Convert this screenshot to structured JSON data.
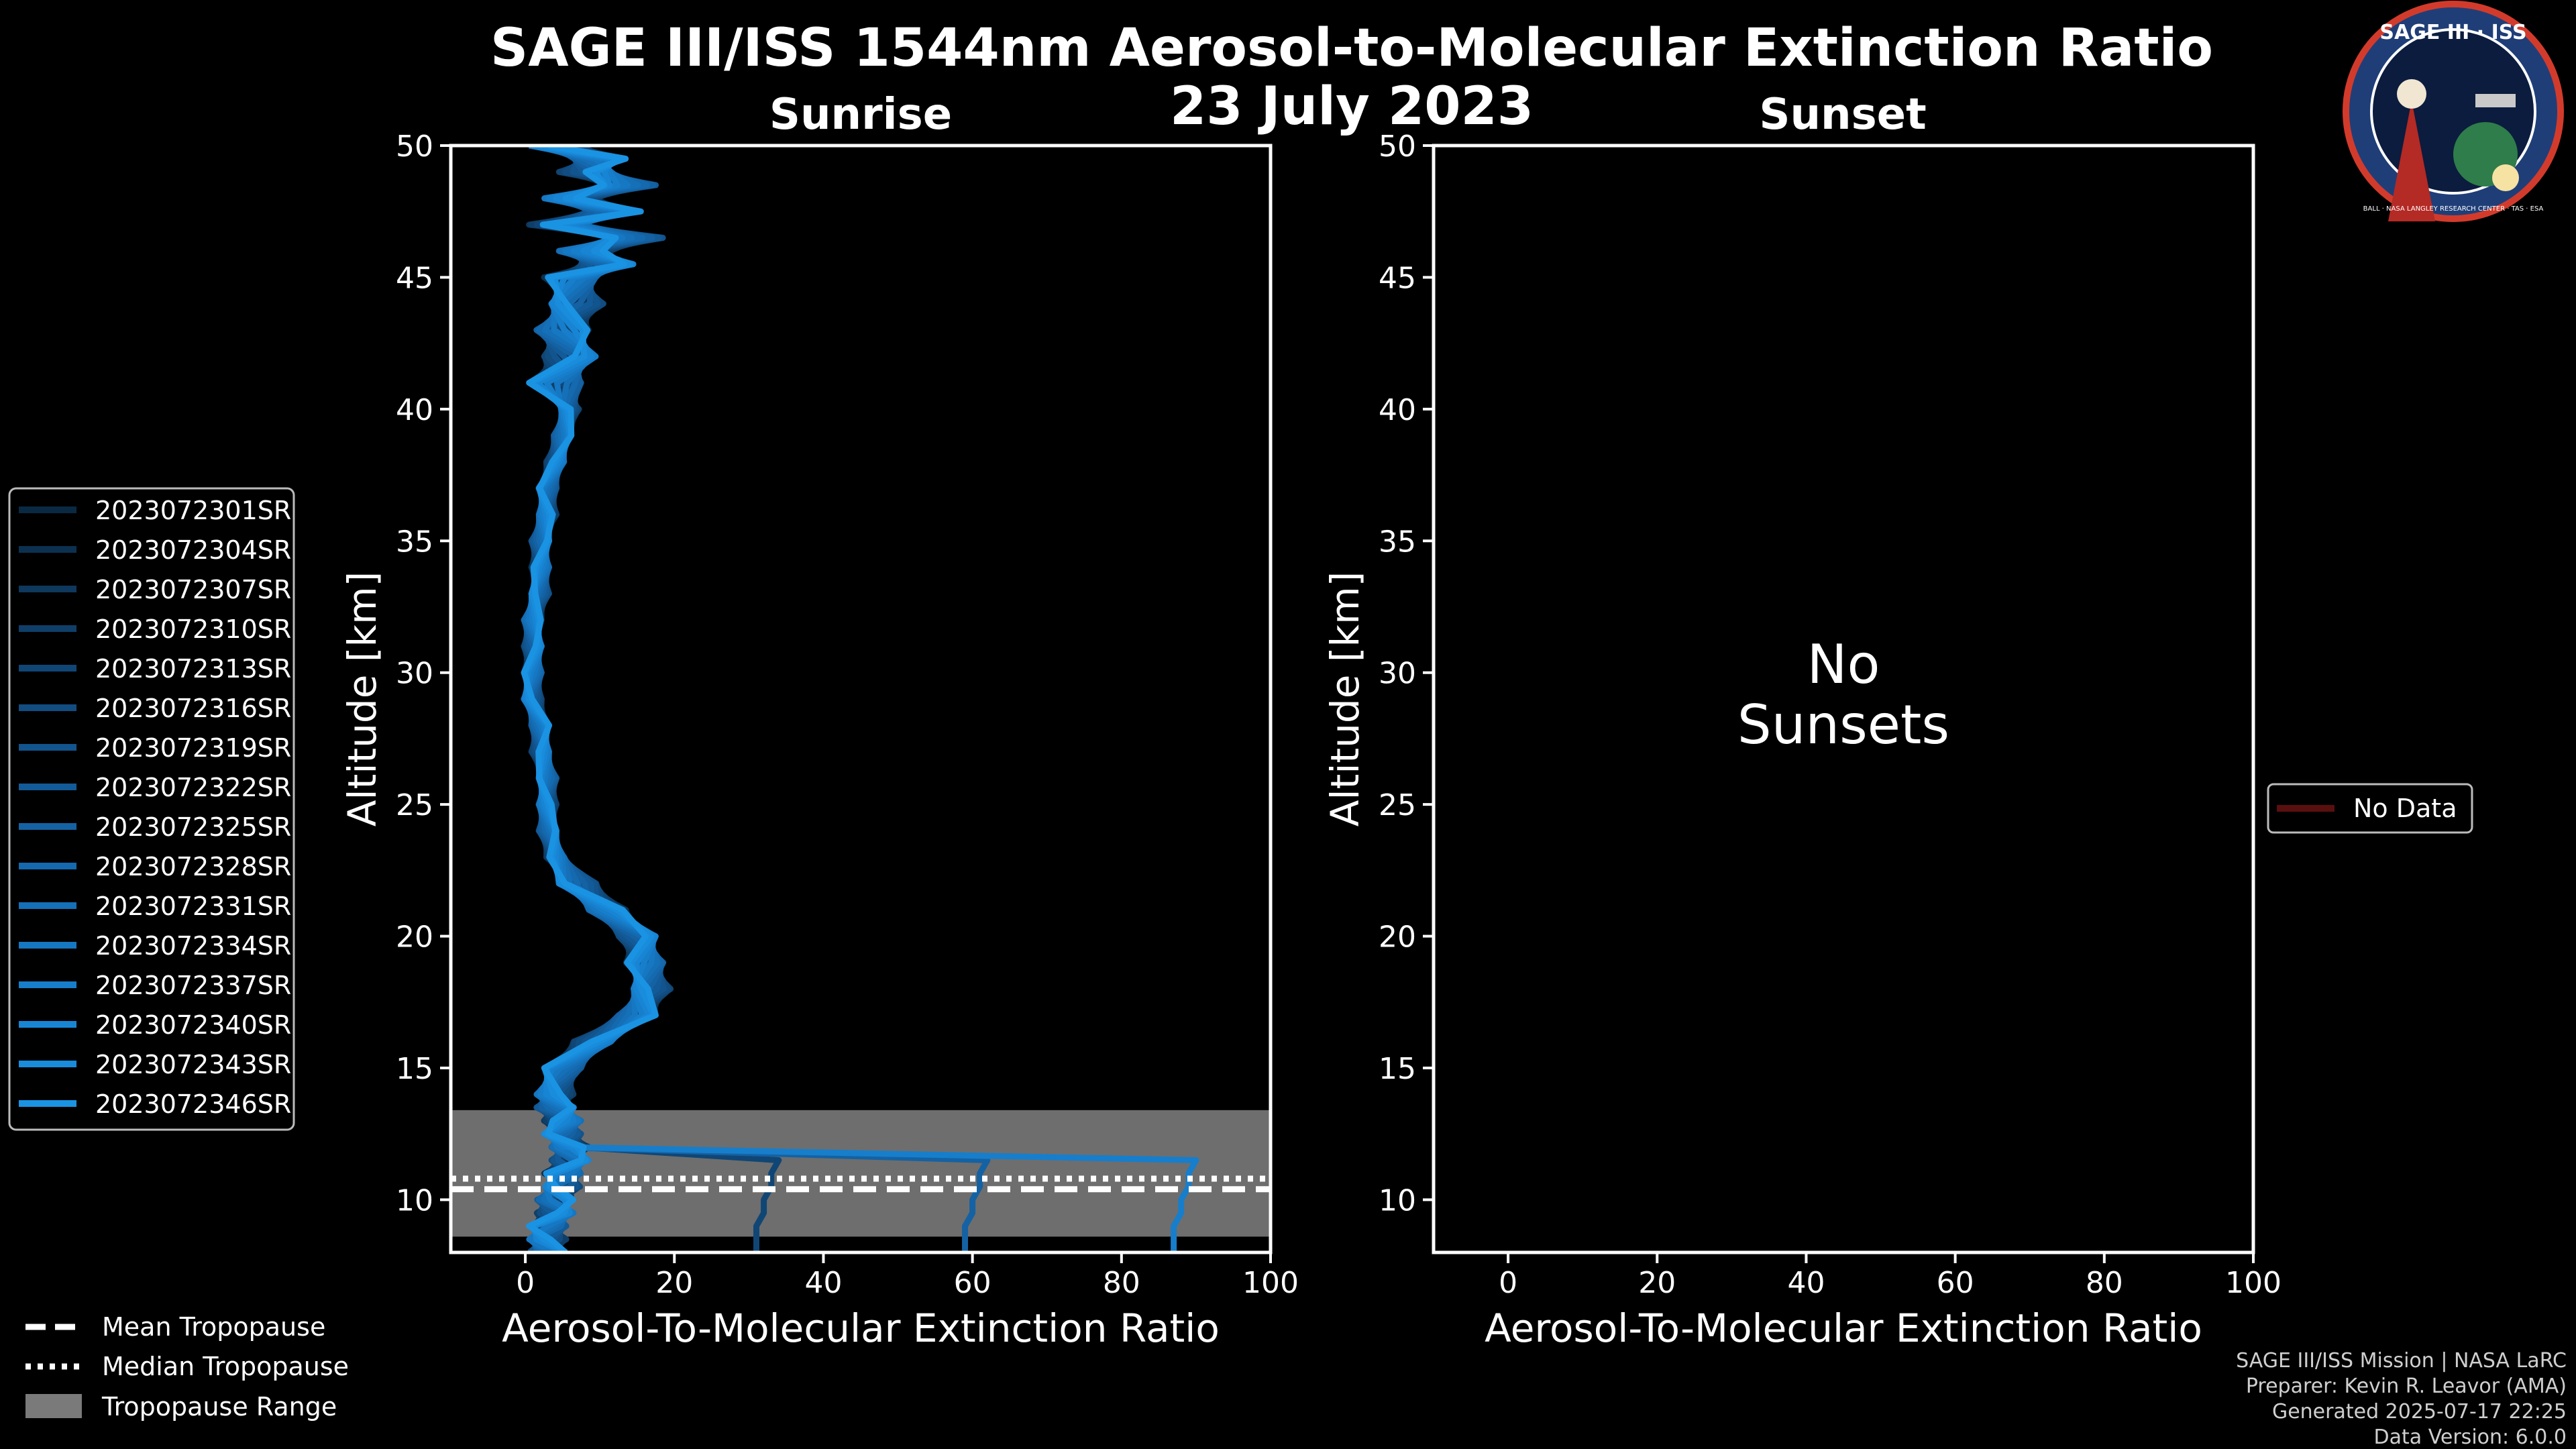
{
  "chart_data": [
    {
      "type": "line",
      "panel": "sunrise",
      "title": "Sunrise",
      "xlabel": "Aerosol-To-Molecular Extinction Ratio",
      "ylabel": "Altitude [km]",
      "xlim": [
        -10,
        100
      ],
      "ylim": [
        8,
        50
      ],
      "xticks": [
        0,
        20,
        40,
        60,
        80,
        100
      ],
      "yticks": [
        10,
        15,
        20,
        25,
        30,
        35,
        40,
        45,
        50
      ],
      "tropopause": {
        "mean": 10.4,
        "median": 10.8,
        "range": [
          8.6,
          13.4
        ]
      },
      "series": [
        {
          "name": "2023072301SR",
          "color": "#0a2a44",
          "phase": 0.0
        },
        {
          "name": "2023072304SR",
          "color": "#0c3150",
          "phase": 0.4
        },
        {
          "name": "2023072307SR",
          "color": "#0e385d",
          "phase": 0.8
        },
        {
          "name": "2023072310SR",
          "color": "#0f3f69",
          "phase": 1.2
        },
        {
          "name": "2023072313SR",
          "color": "#104675",
          "phase": 1.6
        },
        {
          "name": "2023072316SR",
          "color": "#114d81",
          "phase": 2.0
        },
        {
          "name": "2023072319SR",
          "color": "#12548d",
          "phase": 2.4
        },
        {
          "name": "2023072322SR",
          "color": "#135b98",
          "phase": 2.8
        },
        {
          "name": "2023072325SR",
          "color": "#1462a3",
          "phase": 3.2
        },
        {
          "name": "2023072328SR",
          "color": "#1569ae",
          "phase": 3.6
        },
        {
          "name": "2023072331SR",
          "color": "#1570b8",
          "phase": 4.0
        },
        {
          "name": "2023072334SR",
          "color": "#1677c2",
          "phase": 4.4
        },
        {
          "name": "2023072337SR",
          "color": "#177ecb",
          "phase": 4.8
        },
        {
          "name": "2023072340SR",
          "color": "#1885d4",
          "phase": 5.2
        },
        {
          "name": "2023072343SR",
          "color": "#198cdc",
          "phase": 5.6
        },
        {
          "name": "2023072346SR",
          "color": "#1a93e3",
          "phase": 6.0
        }
      ],
      "profile": {
        "altitude": [
          50,
          49.5,
          49,
          48.5,
          48,
          47.5,
          47,
          46.5,
          46,
          45.5,
          45,
          44,
          43,
          42,
          41,
          40,
          39,
          38,
          37,
          36,
          35,
          34,
          33,
          32,
          31,
          30,
          29,
          28,
          27,
          26,
          25,
          24,
          23,
          22,
          21,
          20,
          19,
          18,
          17,
          16,
          15,
          14,
          13.5,
          13,
          12.5,
          12,
          11.5,
          11,
          10.5,
          10,
          9.5,
          9,
          8.5,
          8
        ],
        "ratio": [
          4,
          10,
          8,
          14,
          6,
          12,
          4,
          15,
          8,
          11,
          6,
          7,
          5,
          6,
          4,
          6,
          5,
          4,
          3,
          3,
          2,
          2,
          2,
          1,
          1,
          1,
          1,
          2,
          2,
          3,
          3,
          3,
          4,
          7,
          11,
          15,
          16,
          17,
          15,
          9,
          5,
          4,
          4,
          5,
          5,
          6,
          6,
          5,
          5,
          4,
          4,
          3,
          3,
          3
        ]
      }
    },
    {
      "type": "line",
      "panel": "sunset",
      "title": "Sunset",
      "xlabel": "Aerosol-To-Molecular Extinction Ratio",
      "ylabel": "Altitude [km]",
      "xlim": [
        -10,
        100
      ],
      "ylim": [
        8,
        50
      ],
      "xticks": [
        0,
        20,
        40,
        60,
        80,
        100
      ],
      "yticks": [
        10,
        15,
        20,
        25,
        30,
        35,
        40,
        45,
        50
      ],
      "annotation_line1": "No",
      "annotation_line2": "Sunsets",
      "legend": [
        {
          "name": "No Data",
          "color": "#5a0f0f"
        }
      ],
      "series": []
    }
  ],
  "figure": {
    "title": "SAGE III/ISS 1544nm Aerosol-to-Molecular Extinction Ratio",
    "date": "23 July 2023",
    "tropo_legend": {
      "mean": "Mean Tropopause",
      "median": "Median Tropopause",
      "range": "Tropopause Range"
    },
    "logo": {
      "top": "SAGE III · ISS",
      "ring": "BALL · NASA LANGLEY RESEARCH CENTER · TAS · ESA"
    },
    "footer": {
      "line1": "SAGE III/ISS Mission | NASA LaRC",
      "line2": "Preparer: Kevin R. Leavor (AMA)",
      "line3": "Generated 2025-07-17 22:25",
      "line4": "Data Version: 6.0.0"
    }
  }
}
